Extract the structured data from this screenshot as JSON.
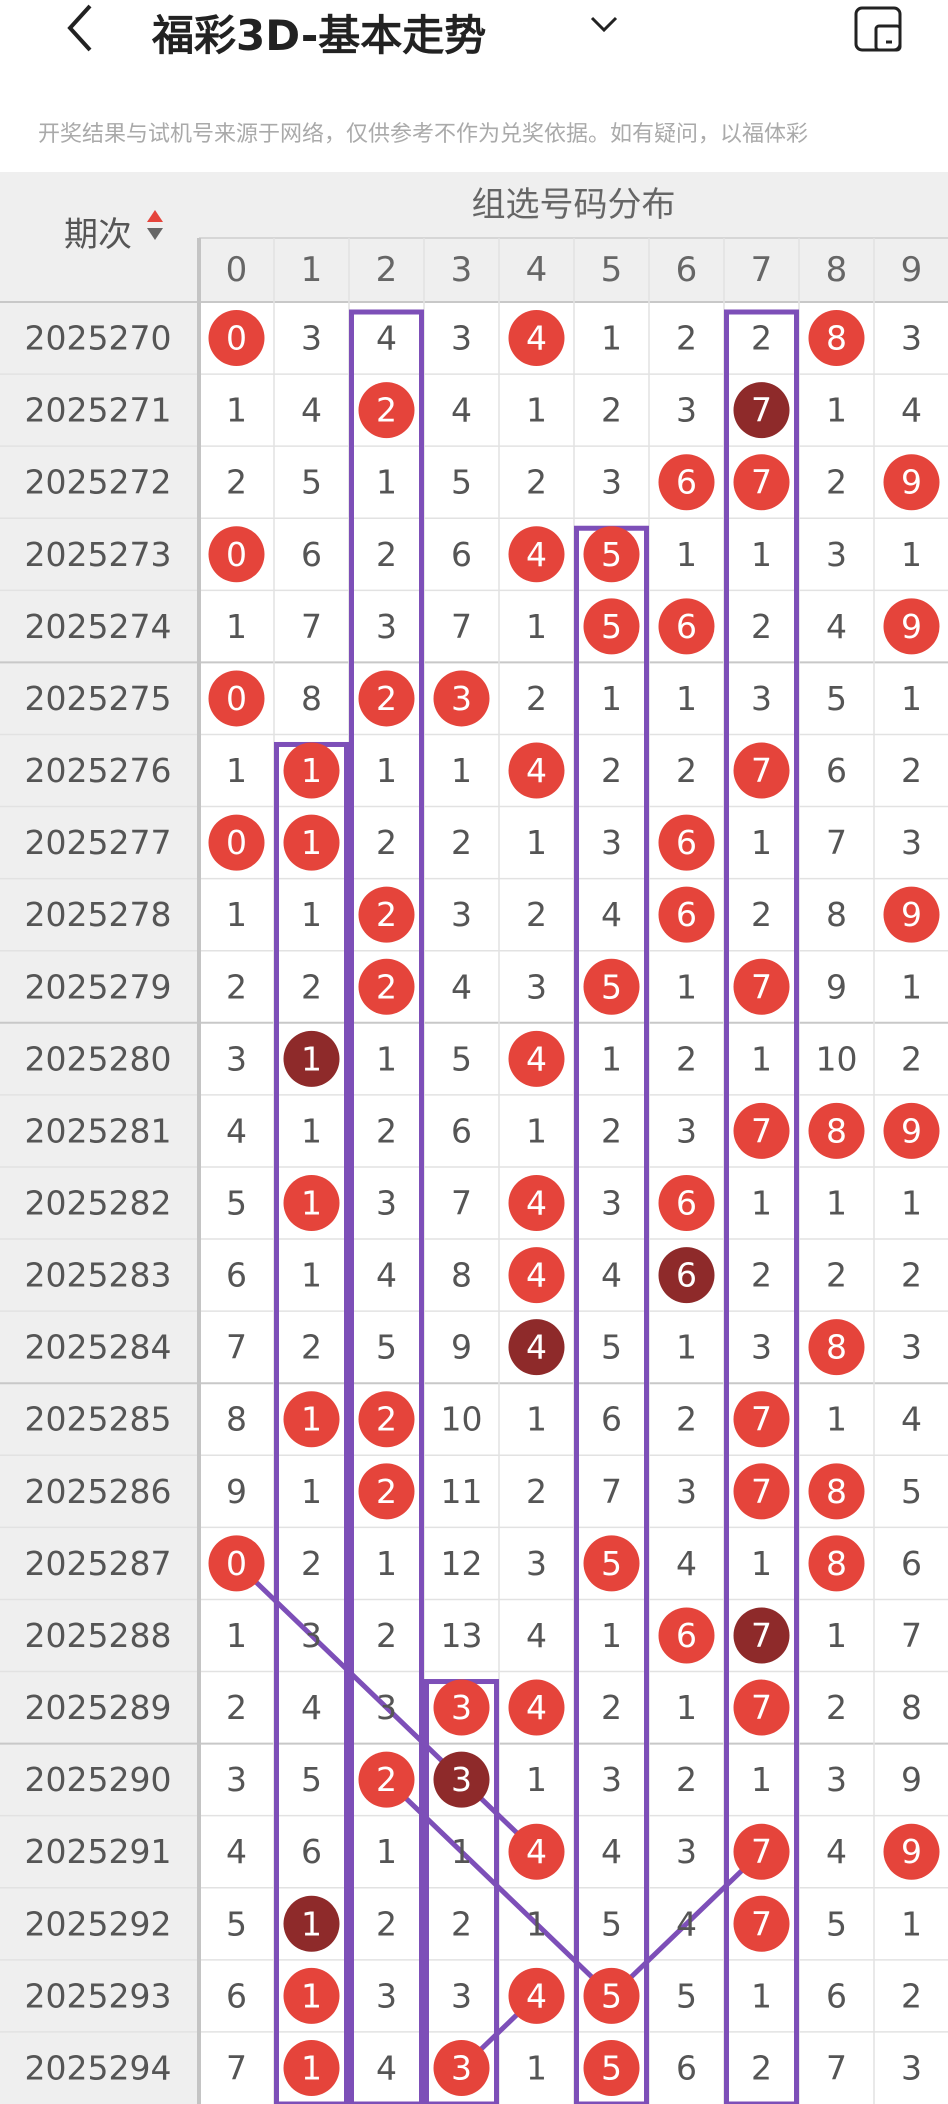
{
  "header": {
    "title": "福彩3D-基本走势",
    "notice": "开奖结果与试机号来源于网络，仅供参考不作为兑奖依据。如有疑问，以福体彩"
  },
  "table": {
    "period_header": "期次",
    "group_header": "组选号码分布",
    "digits": [
      0,
      1,
      2,
      3,
      4,
      5,
      6,
      7,
      8,
      9
    ],
    "rows": [
      {
        "period": "2025270",
        "cells": [
          0,
          3,
          4,
          3,
          4,
          1,
          2,
          2,
          8,
          3
        ],
        "balls": [
          "#e5443b",
          null,
          null,
          null,
          "#e5443b",
          null,
          null,
          null,
          "#e5443b",
          null
        ]
      },
      {
        "period": "2025271",
        "cells": [
          1,
          4,
          2,
          4,
          1,
          2,
          3,
          7,
          1,
          4
        ],
        "balls": [
          null,
          null,
          "#e5443b",
          null,
          null,
          null,
          null,
          "#8e2a2a",
          null,
          null
        ]
      },
      {
        "period": "2025272",
        "cells": [
          2,
          5,
          1,
          5,
          2,
          3,
          6,
          7,
          2,
          9
        ],
        "balls": [
          null,
          null,
          null,
          null,
          null,
          null,
          "#e5443b",
          "#e5443b",
          null,
          "#e5443b"
        ]
      },
      {
        "period": "2025273",
        "cells": [
          0,
          6,
          2,
          6,
          4,
          5,
          1,
          1,
          3,
          1
        ],
        "balls": [
          "#e5443b",
          null,
          null,
          null,
          "#e5443b",
          "#e5443b",
          null,
          null,
          null,
          null
        ]
      },
      {
        "period": "2025274",
        "cells": [
          1,
          7,
          3,
          7,
          1,
          5,
          6,
          2,
          4,
          9
        ],
        "balls": [
          null,
          null,
          null,
          null,
          null,
          "#e5443b",
          "#e5443b",
          null,
          null,
          "#e5443b"
        ]
      },
      {
        "period": "2025275",
        "cells": [
          0,
          8,
          2,
          3,
          2,
          1,
          1,
          3,
          5,
          1
        ],
        "balls": [
          "#e5443b",
          null,
          "#e5443b",
          "#e5443b",
          null,
          null,
          null,
          null,
          null,
          null
        ]
      },
      {
        "period": "2025276",
        "cells": [
          1,
          1,
          1,
          1,
          4,
          2,
          2,
          7,
          6,
          2
        ],
        "balls": [
          null,
          "#e5443b",
          null,
          null,
          "#e5443b",
          null,
          null,
          "#e5443b",
          null,
          null
        ]
      },
      {
        "period": "2025277",
        "cells": [
          0,
          1,
          2,
          2,
          1,
          3,
          6,
          1,
          7,
          3
        ],
        "balls": [
          "#e5443b",
          "#e5443b",
          null,
          null,
          null,
          null,
          "#e5443b",
          null,
          null,
          null
        ]
      },
      {
        "period": "2025278",
        "cells": [
          1,
          1,
          2,
          3,
          2,
          4,
          6,
          2,
          8,
          9
        ],
        "balls": [
          null,
          null,
          "#e5443b",
          null,
          null,
          null,
          "#e5443b",
          null,
          null,
          "#e5443b"
        ]
      },
      {
        "period": "2025279",
        "cells": [
          2,
          2,
          2,
          4,
          3,
          5,
          1,
          7,
          9,
          1
        ],
        "balls": [
          null,
          null,
          "#e5443b",
          null,
          null,
          "#e5443b",
          null,
          "#e5443b",
          null,
          null
        ]
      },
      {
        "period": "2025280",
        "cells": [
          3,
          1,
          1,
          5,
          4,
          1,
          2,
          1,
          10,
          2
        ],
        "balls": [
          null,
          "#8e2a2a",
          null,
          null,
          "#e5443b",
          null,
          null,
          null,
          null,
          null
        ]
      },
      {
        "period": "2025281",
        "cells": [
          4,
          1,
          2,
          6,
          1,
          2,
          3,
          7,
          8,
          9
        ],
        "balls": [
          null,
          null,
          null,
          null,
          null,
          null,
          null,
          "#e5443b",
          "#e5443b",
          "#e5443b"
        ]
      },
      {
        "period": "2025282",
        "cells": [
          5,
          1,
          3,
          7,
          4,
          3,
          6,
          1,
          1,
          1
        ],
        "balls": [
          null,
          "#e5443b",
          null,
          null,
          "#e5443b",
          null,
          "#e5443b",
          null,
          null,
          null
        ]
      },
      {
        "period": "2025283",
        "cells": [
          6,
          1,
          4,
          8,
          4,
          4,
          6,
          2,
          2,
          2
        ],
        "balls": [
          null,
          null,
          null,
          null,
          "#e5443b",
          null,
          "#8e2a2a",
          null,
          null,
          null
        ]
      },
      {
        "period": "2025284",
        "cells": [
          7,
          2,
          5,
          9,
          4,
          5,
          1,
          3,
          8,
          3
        ],
        "balls": [
          null,
          null,
          null,
          null,
          "#8e2a2a",
          null,
          null,
          null,
          "#e5443b",
          null
        ]
      },
      {
        "period": "2025285",
        "cells": [
          8,
          1,
          2,
          10,
          1,
          6,
          2,
          7,
          1,
          4
        ],
        "balls": [
          null,
          "#e5443b",
          "#e5443b",
          null,
          null,
          null,
          null,
          "#e5443b",
          null,
          null
        ]
      },
      {
        "period": "2025286",
        "cells": [
          9,
          1,
          2,
          11,
          2,
          7,
          3,
          7,
          8,
          5
        ],
        "balls": [
          null,
          null,
          "#e5443b",
          null,
          null,
          null,
          null,
          "#e5443b",
          "#e5443b",
          null
        ]
      },
      {
        "period": "2025287",
        "cells": [
          0,
          2,
          1,
          12,
          3,
          5,
          4,
          1,
          8,
          6
        ],
        "balls": [
          "#e5443b",
          null,
          null,
          null,
          null,
          "#e5443b",
          null,
          null,
          "#e5443b",
          null
        ]
      },
      {
        "period": "2025288",
        "cells": [
          1,
          3,
          2,
          13,
          4,
          1,
          6,
          7,
          1,
          7
        ],
        "balls": [
          null,
          null,
          null,
          null,
          null,
          null,
          "#e5443b",
          "#8e2a2a",
          null,
          null
        ]
      },
      {
        "period": "2025289",
        "cells": [
          2,
          4,
          3,
          3,
          4,
          2,
          1,
          7,
          2,
          8
        ],
        "balls": [
          null,
          null,
          null,
          "#e5443b",
          "#e5443b",
          null,
          null,
          "#e5443b",
          null,
          null
        ]
      },
      {
        "period": "2025290",
        "cells": [
          3,
          5,
          2,
          3,
          1,
          3,
          2,
          1,
          3,
          9
        ],
        "balls": [
          null,
          null,
          "#e5443b",
          "#8e2a2a",
          null,
          null,
          null,
          null,
          null,
          null
        ]
      },
      {
        "period": "2025291",
        "cells": [
          4,
          6,
          1,
          1,
          4,
          4,
          3,
          7,
          4,
          9
        ],
        "balls": [
          null,
          null,
          null,
          null,
          "#e5443b",
          null,
          null,
          "#e5443b",
          null,
          "#e5443b"
        ]
      },
      {
        "period": "2025292",
        "cells": [
          5,
          1,
          2,
          2,
          1,
          5,
          4,
          7,
          5,
          1
        ],
        "balls": [
          null,
          "#8e2a2a",
          null,
          null,
          null,
          null,
          null,
          "#e5443b",
          null,
          null
        ]
      },
      {
        "period": "2025293",
        "cells": [
          6,
          1,
          3,
          3,
          4,
          5,
          5,
          1,
          6,
          2
        ],
        "balls": [
          null,
          "#e5443b",
          null,
          null,
          "#e5443b",
          "#e5443b",
          null,
          null,
          null,
          null
        ]
      },
      {
        "period": "2025294",
        "cells": [
          7,
          1,
          4,
          3,
          1,
          5,
          6,
          2,
          7,
          3
        ],
        "balls": [
          null,
          "#e5443b",
          null,
          "#e5443b",
          null,
          "#e5443b",
          null,
          null,
          null,
          null
        ]
      }
    ]
  }
}
